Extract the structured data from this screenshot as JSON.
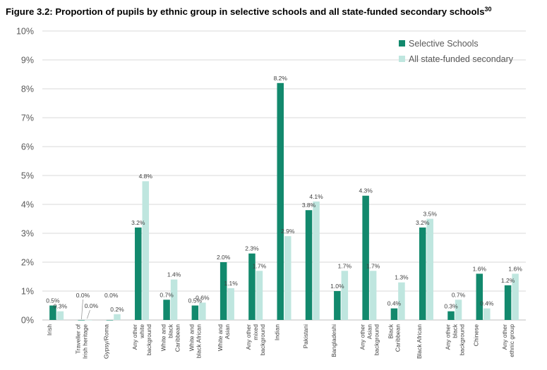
{
  "title": "Figure 3.2: Proportion of pupils by ethnic group in selective schools and all state-funded secondary schools",
  "footnote": "30",
  "chart_data": {
    "type": "bar",
    "title": "Figure 3.2: Proportion of pupils by ethnic group in selective schools and all state-funded secondary schools",
    "xlabel": "",
    "ylabel": "",
    "ylim": [
      0,
      10
    ],
    "yticks": [
      "0%",
      "1%",
      "2%",
      "3%",
      "4%",
      "5%",
      "6%",
      "7%",
      "8%",
      "9%",
      "10%"
    ],
    "grid": true,
    "legend": "top-right",
    "categories": [
      [
        "Irish"
      ],
      [
        "Traveller of",
        "Irish heritage"
      ],
      [
        "Gypsy/Roma"
      ],
      [
        "Any other",
        "white",
        "background"
      ],
      [
        "White and",
        "black",
        "Caribbean"
      ],
      [
        "White and",
        "black African"
      ],
      [
        "White and",
        "Asian"
      ],
      [
        "Any other",
        "mixed",
        "background"
      ],
      [
        "Indian"
      ],
      [
        "Pakistani"
      ],
      [
        "Bangladeshi"
      ],
      [
        "Any other",
        "Asian",
        "background"
      ],
      [
        "Black",
        "Caribbean"
      ],
      [
        "Black African"
      ],
      [
        "Any other",
        "black",
        "background"
      ],
      [
        "Chinese"
      ],
      [
        "Any other",
        "ethnic group"
      ]
    ],
    "series": [
      {
        "name": "Selective Schools",
        "color": "#12896d",
        "values": [
          0.5,
          0.0,
          0.0,
          3.2,
          0.7,
          0.5,
          2.0,
          2.3,
          8.2,
          3.8,
          1.0,
          4.3,
          0.4,
          3.2,
          0.3,
          1.6,
          1.2
        ],
        "labels": [
          "0.5%",
          "0.0%",
          "0.0%",
          "3.2%",
          "0.7%",
          "0.5%",
          "2.0%",
          "2.3%",
          "8.2%",
          "3.8%",
          "1.0%",
          "4.3%",
          "0.4%",
          "3.2%",
          "0.3%",
          "1.6%",
          "1.2%"
        ]
      },
      {
        "name": "All state-funded secondary",
        "color": "#bfe6df",
        "values": [
          0.3,
          0.0,
          0.2,
          4.8,
          1.4,
          0.6,
          1.1,
          1.7,
          2.9,
          4.1,
          1.7,
          1.7,
          1.3,
          3.5,
          0.7,
          0.4,
          1.6
        ],
        "labels": [
          "0.3%",
          "0.0%",
          "0.2%",
          "4.8%",
          "1.4%",
          "0.6%",
          "1.1%",
          "1.7%",
          "2.9%",
          "4.1%",
          "1.7%",
          "1.7%",
          "1.3%",
          "3.5%",
          "0.7%",
          "0.4%",
          "1.6%"
        ]
      }
    ]
  }
}
